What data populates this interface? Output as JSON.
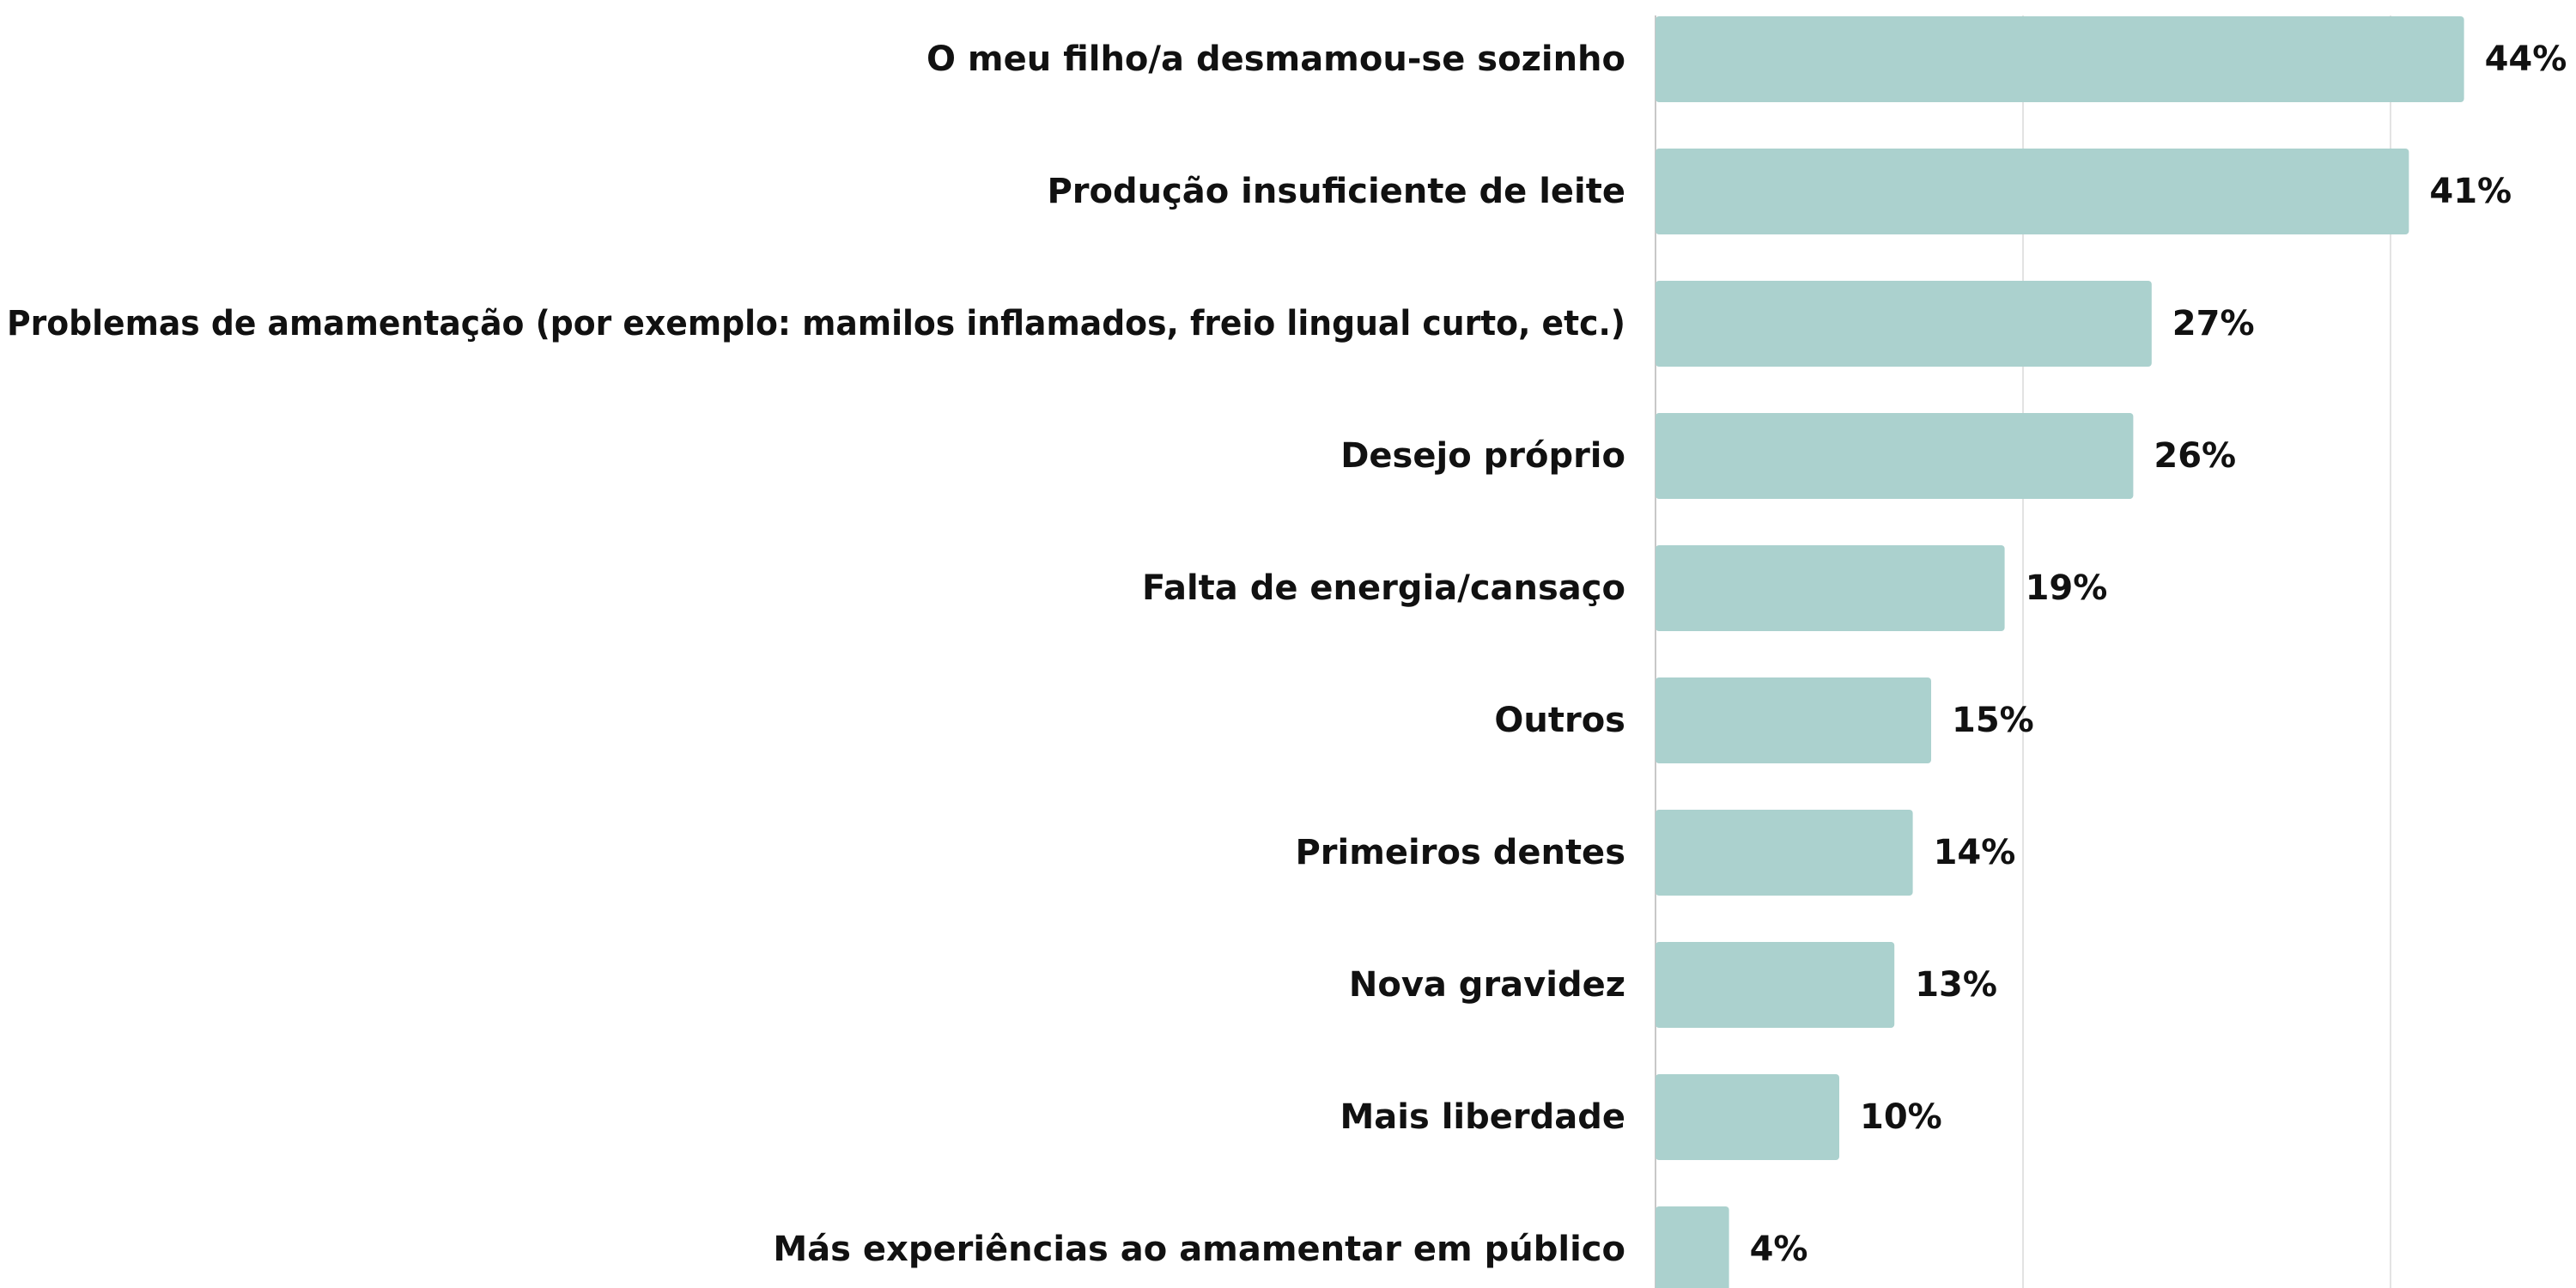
{
  "chart_data": {
    "type": "bar",
    "orientation": "horizontal",
    "categories": [
      "O meu filho/a desmamou-se sozinho",
      "Produção insuficiente de leite",
      "Problemas de amamentação (por exemplo: mamilos inflamados, freio lingual curto, etc.)",
      "Desejo próprio",
      "Falta de energia/cansaço",
      "Outros",
      "Primeiros dentes",
      "Nova gravidez",
      "Mais liberdade",
      "Más experiências ao amamentar em público"
    ],
    "values": [
      44,
      41,
      27,
      26,
      19,
      15,
      14,
      13,
      10,
      4
    ],
    "value_labels": [
      "44%",
      "41%",
      "27%",
      "26%",
      "19%",
      "15%",
      "14%",
      "13%",
      "10%",
      "4%"
    ],
    "unit": "%",
    "xlim": [
      0,
      50
    ],
    "gridlines_at": [
      0,
      20,
      40
    ],
    "grid": true,
    "legend": "none",
    "title": "",
    "xlabel": "",
    "ylabel": "",
    "bar_color": "#abd1ce"
  }
}
